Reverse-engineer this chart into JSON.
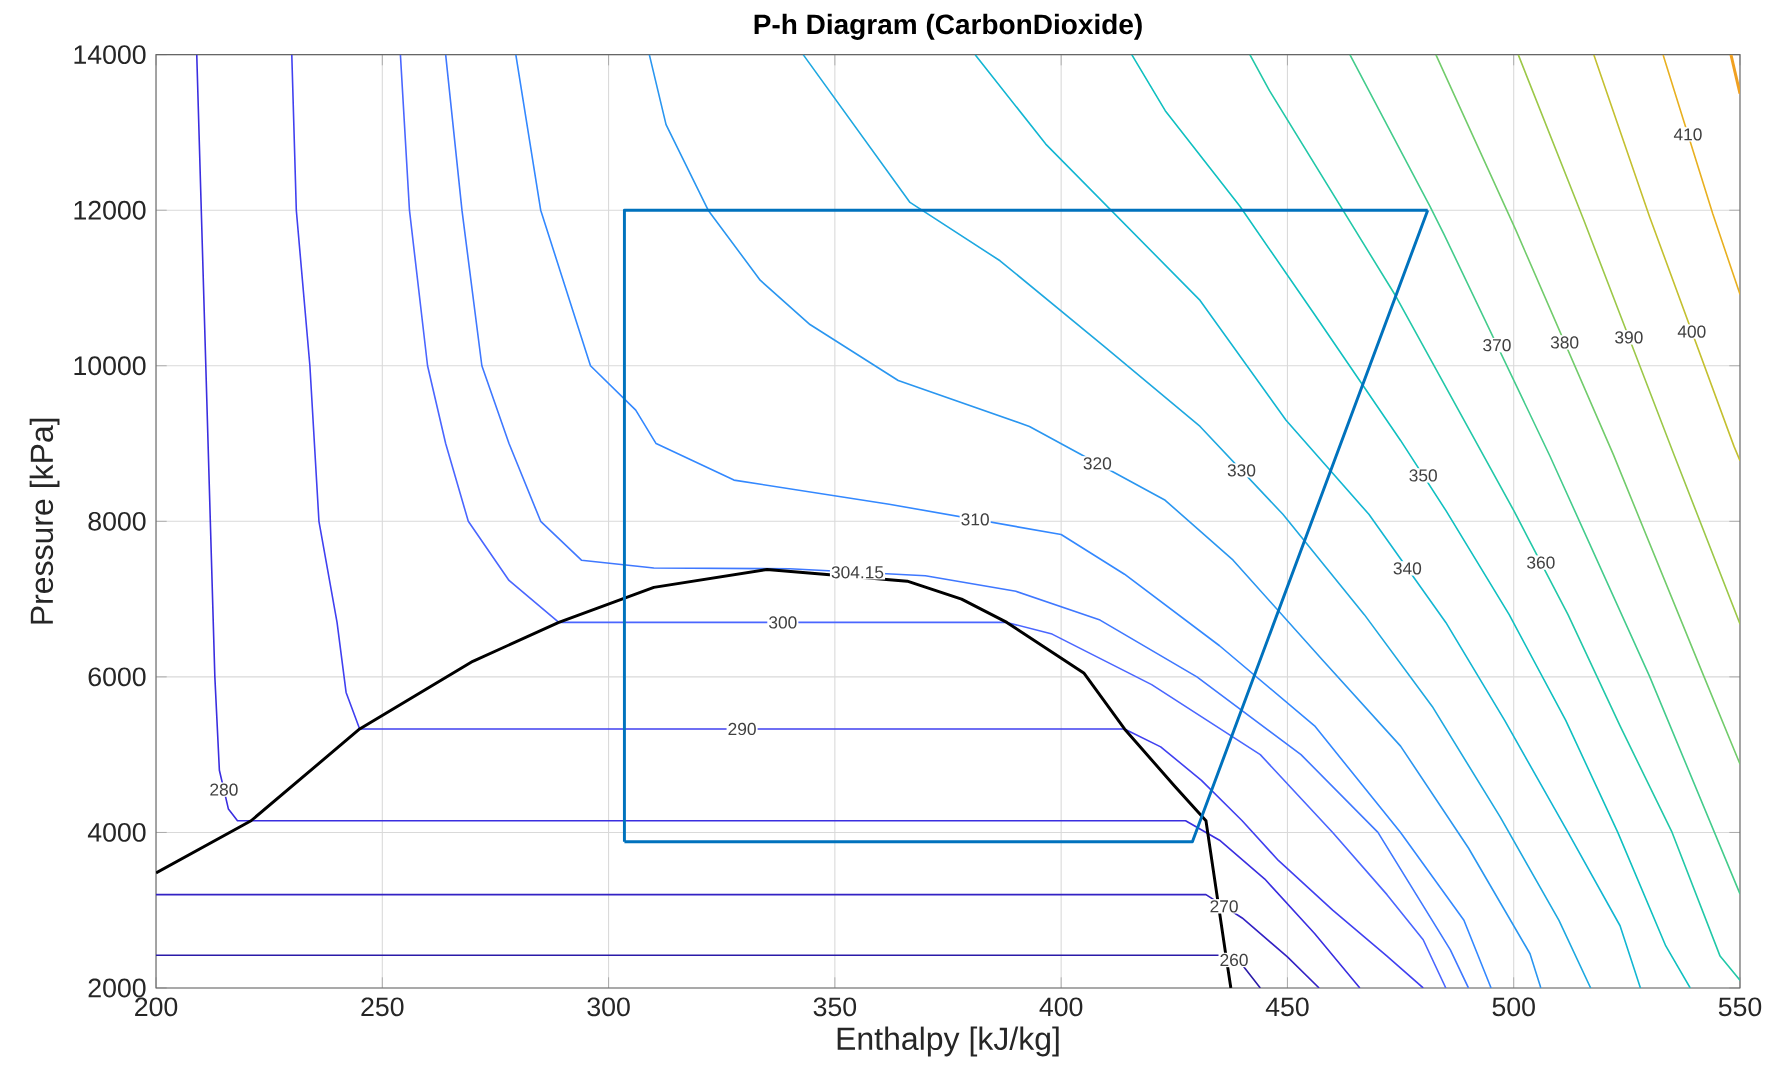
{
  "chart_data": {
    "type": "line",
    "title": "P-h Diagram (CarbonDioxide)",
    "xlabel": "Enthalpy [kJ/kg]",
    "ylabel": "Pressure [kPa]",
    "xlim": [
      200,
      550
    ],
    "ylim": [
      2000,
      14000
    ],
    "xticks": [
      200,
      250,
      300,
      350,
      400,
      450,
      500,
      550
    ],
    "yticks": [
      2000,
      4000,
      6000,
      8000,
      10000,
      12000,
      14000
    ],
    "grid": true,
    "marker": "none",
    "line_style": "solid",
    "series": [
      {
        "name": "260",
        "color": "#2a1aa8",
        "x": [
          200,
          436.4,
          440,
          444
        ],
        "values": [
          2420,
          2420,
          2300,
          2000
        ]
      },
      {
        "name": "270",
        "color": "#3322c4",
        "x": [
          200,
          432,
          440,
          450,
          457
        ],
        "values": [
          3200,
          3200,
          2900,
          2400,
          2000
        ]
      },
      {
        "name": "280",
        "color": "#3a2ee0",
        "x": [
          209,
          210,
          211,
          212,
          213,
          214,
          216,
          218,
          427.5,
          435,
          445,
          456,
          466
        ],
        "values": [
          14000,
          12000,
          10000,
          8000,
          6000,
          4800,
          4300,
          4150,
          4150,
          3900,
          3400,
          2700,
          2000
        ]
      },
      {
        "name": "290",
        "color": "#4040f0",
        "x": [
          230,
          231,
          234,
          236,
          240,
          242,
          245,
          414,
          422,
          431,
          440,
          448,
          460,
          472,
          480
        ],
        "values": [
          14000,
          12000,
          10000,
          8000,
          6700,
          5800,
          5330,
          5330,
          5100,
          4670,
          4150,
          3640,
          3000,
          2410,
          2000
        ]
      },
      {
        "name": "300",
        "color": "#4a66ff",
        "x": [
          254,
          256,
          260,
          264,
          269,
          278,
          289,
          388,
          398,
          420,
          444,
          460,
          472,
          480,
          485
        ],
        "values": [
          14000,
          12000,
          10000,
          9000,
          8000,
          7240,
          6700,
          6700,
          6550,
          5900,
          5000,
          4000,
          3200,
          2620,
          2000
        ]
      },
      {
        "name": "304.15",
        "color": "#3f78ff",
        "x": [
          264,
          267.6,
          272,
          278,
          285,
          294,
          310,
          340,
          370,
          390,
          408.6,
          430,
          453,
          470,
          486,
          490
        ],
        "values": [
          14000,
          12000,
          10000,
          9000,
          8000,
          7500,
          7400,
          7390,
          7300,
          7100,
          6730,
          6000,
          5000,
          4000,
          2490,
          2000
        ]
      },
      {
        "name": "310",
        "color": "#3388ff",
        "x": [
          279.5,
          285,
          296,
          306,
          310.5,
          327.7,
          362,
          400,
          414,
          435,
          456,
          475,
          489,
          495
        ],
        "values": [
          14000,
          12000,
          10000,
          9430,
          9000,
          8530,
          8220,
          7830,
          7320,
          6400,
          5370,
          4000,
          2870,
          2000
        ]
      },
      {
        "name": "320",
        "color": "#2a96f0",
        "x": [
          309,
          312.7,
          322,
          333.5,
          344.5,
          364,
          393,
          423,
          438,
          458,
          475,
          490,
          503.6,
          506
        ],
        "values": [
          14000,
          13100,
          12000,
          11100,
          10530,
          9810,
          9220,
          8270,
          7500,
          6200,
          5110,
          3800,
          2440,
          2000
        ]
      },
      {
        "name": "330",
        "color": "#1ea8e0",
        "x": [
          343,
          366.6,
          386.5,
          409.5,
          430.7,
          449,
          467,
          482,
          497,
          510,
          517
        ],
        "values": [
          14000,
          12100,
          11350,
          10250,
          9220,
          8090,
          6800,
          5620,
          4200,
          2870,
          2000
        ]
      },
      {
        "name": "340",
        "color": "#12b6d2",
        "x": [
          381,
          396.6,
          430.7,
          449.7,
          468,
          485,
          498,
          512,
          523.5,
          528
        ],
        "values": [
          14000,
          12850,
          10840,
          9300,
          8090,
          6700,
          5440,
          4000,
          2800,
          2000
        ]
      },
      {
        "name": "350",
        "color": "#10c0c0",
        "x": [
          415.6,
          423,
          439.5,
          456,
          475,
          485,
          499,
          511.5,
          523,
          533.6,
          539
        ],
        "values": [
          14000,
          13280,
          12050,
          10660,
          9040,
          8140,
          6800,
          5440,
          4000,
          2540,
          2000
        ]
      },
      {
        "name": "360",
        "color": "#22c8a8",
        "x": [
          441.7,
          446,
          474,
          500,
          512,
          523.5,
          535,
          545.6,
          550
        ],
        "values": [
          14000,
          13540,
          10890,
          8140,
          6800,
          5370,
          4000,
          2410,
          2100
        ]
      },
      {
        "name": "370",
        "color": "#44cc8c",
        "x": [
          463.8,
          481.5,
          484.6,
          508,
          530,
          550
        ],
        "values": [
          14000,
          12050,
          11690,
          8840,
          6010,
          3210
        ]
      },
      {
        "name": "380",
        "color": "#72cc6c",
        "x": [
          482.8,
          500.5,
          522,
          542,
          550
        ],
        "values": [
          14000,
          11740,
          8860,
          6010,
          4880
        ]
      },
      {
        "name": "390",
        "color": "#9cc848",
        "x": [
          501,
          515.5,
          535.4,
          550
        ],
        "values": [
          14000,
          11870,
          8860,
          6680
        ]
      },
      {
        "name": "400",
        "color": "#c4c030",
        "x": [
          517.7,
          530,
          548.7,
          550
        ],
        "values": [
          14000,
          11920,
          8960,
          8780
        ]
      },
      {
        "name": "410",
        "color": "#e8b020",
        "x": [
          533,
          544,
          550
        ],
        "values": [
          14000,
          11950,
          10920
        ]
      },
      {
        "color": "#f0a020",
        "x": [
          548,
          550
        ],
        "values": [
          14000,
          13500
        ]
      },
      {
        "color": "#000000",
        "x": [
          200,
          221,
          245,
          270,
          289,
          310,
          335,
          366,
          378,
          388,
          405,
          414,
          425,
          432,
          436.4,
          437.5
        ],
        "values": [
          3480,
          4150,
          5330,
          6200,
          6700,
          7150,
          7380,
          7230,
          7000,
          6700,
          6050,
          5330,
          4600,
          4150,
          2420,
          2000
        ]
      },
      {
        "color": "#0072bd",
        "x": [
          303.5,
          303.5,
          481
        ],
        "values": [
          3880,
          12000,
          12000
        ]
      },
      {
        "color": "#0072bd",
        "x": [
          303.5,
          429,
          481
        ],
        "values": [
          3880,
          3880,
          12000
        ]
      }
    ]
  }
}
